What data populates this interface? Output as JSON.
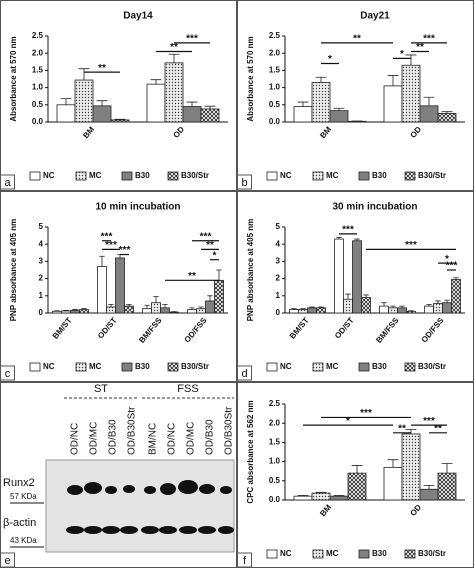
{
  "chart_data": [
    {
      "panel": "a",
      "type": "bar",
      "title": "Day14",
      "ylabel": "Absorbance at 570 nm",
      "categories": [
        "BM",
        "OD"
      ],
      "ylim": [
        0,
        2.5
      ],
      "yticks": [
        {
          "value": 0,
          "label": "0.0"
        },
        {
          "value": 0.5,
          "label": "0.5"
        },
        {
          "value": 1,
          "label": "1.0"
        },
        {
          "value": 1.5,
          "label": "1.5"
        },
        {
          "value": 2,
          "label": "2.0"
        },
        {
          "value": 2.5,
          "label": "2.5"
        }
      ],
      "legend": "bottom",
      "series": [
        {
          "name": "NC",
          "color": "#ffffff",
          "pattern": "solid",
          "values": [
            0.5,
            1.1
          ],
          "errors": [
            0.18,
            0.13
          ]
        },
        {
          "name": "MC",
          "color": "#d8d8d8",
          "pattern": "dots",
          "values": [
            1.22,
            1.72
          ],
          "errors": [
            0.33,
            0.25
          ]
        },
        {
          "name": "B30",
          "color": "#808080",
          "pattern": "solid",
          "values": [
            0.47,
            0.45
          ],
          "errors": [
            0.15,
            0.13
          ]
        },
        {
          "name": "B30/Str",
          "color": "#ffffff",
          "pattern": "cross",
          "values": [
            0.06,
            0.38
          ],
          "errors": [
            0.02,
            0.08
          ]
        }
      ],
      "annotations": [
        {
          "text": "**",
          "y": 1.45,
          "span": [
            [
              0,
              1
            ],
            [
              0,
              3
            ]
          ]
        },
        {
          "text": "**",
          "y": 2.05,
          "span": [
            [
              1,
              0
            ],
            [
              1,
              2
            ]
          ]
        },
        {
          "text": "***",
          "y": 2.3,
          "span": [
            [
              1,
              1
            ],
            [
              1,
              3
            ]
          ]
        }
      ]
    },
    {
      "panel": "b",
      "type": "bar",
      "title": "Day21",
      "ylabel": "Absorbance at 570 nm",
      "categories": [
        "BM",
        "OD"
      ],
      "ylim": [
        0,
        2.5
      ],
      "yticks": [
        {
          "value": 0,
          "label": "0.0"
        },
        {
          "value": 0.5,
          "label": "0.5"
        },
        {
          "value": 1,
          "label": "1.0"
        },
        {
          "value": 1.5,
          "label": "1.5"
        },
        {
          "value": 2,
          "label": "2.0"
        },
        {
          "value": 2.5,
          "label": "2.5"
        }
      ],
      "legend": "bottom",
      "series": [
        {
          "name": "NC",
          "color": "#ffffff",
          "pattern": "solid",
          "values": [
            0.45,
            1.05
          ],
          "errors": [
            0.13,
            0.3
          ]
        },
        {
          "name": "MC",
          "color": "#d8d8d8",
          "pattern": "dots",
          "values": [
            1.15,
            1.65
          ],
          "errors": [
            0.15,
            0.3
          ]
        },
        {
          "name": "B30",
          "color": "#808080",
          "pattern": "solid",
          "values": [
            0.33,
            0.47
          ],
          "errors": [
            0.07,
            0.25
          ]
        },
        {
          "name": "B30/Str",
          "color": "#ffffff",
          "pattern": "cross",
          "values": [
            0.02,
            0.25
          ],
          "errors": [
            0.01,
            0.05
          ]
        }
      ],
      "annotations": [
        {
          "text": "**",
          "y": 2.3,
          "span": [
            [
              0,
              1
            ],
            [
              1,
              0
            ]
          ]
        },
        {
          "text": "*",
          "y": 1.7,
          "span": [
            [
              0,
              1
            ],
            [
              0,
              2
            ]
          ]
        },
        {
          "text": "*",
          "y": 1.85,
          "span": [
            [
              1,
              0
            ],
            [
              1,
              1
            ]
          ]
        },
        {
          "text": "**",
          "y": 2.05,
          "span": [
            [
              1,
              1
            ],
            [
              1,
              2
            ]
          ]
        },
        {
          "text": "***",
          "y": 2.3,
          "span": [
            [
              1,
              1
            ],
            [
              1,
              3
            ]
          ]
        }
      ]
    },
    {
      "panel": "c",
      "type": "bar",
      "title": "10 min incubation",
      "ylabel": "PNP absorbance at 405 nm",
      "categories": [
        "BM/ST",
        "OD/ST",
        "BM/FSS",
        "OD/FSS"
      ],
      "ylim": [
        0,
        5
      ],
      "yticks": [
        0,
        1,
        2,
        3,
        4,
        5
      ],
      "legend": "bottom",
      "series": [
        {
          "name": "NC",
          "color": "#ffffff",
          "pattern": "solid",
          "values": [
            0.1,
            2.7,
            0.25,
            0.2
          ],
          "errors": [
            0.03,
            0.6,
            0.2,
            0.1
          ]
        },
        {
          "name": "MC",
          "color": "#d8d8d8",
          "pattern": "dots",
          "values": [
            0.12,
            0.35,
            0.6,
            0.25
          ],
          "errors": [
            0.03,
            0.15,
            0.35,
            0.1
          ]
        },
        {
          "name": "B30",
          "color": "#808080",
          "pattern": "solid",
          "values": [
            0.15,
            3.2,
            0.3,
            0.7
          ],
          "errors": [
            0.05,
            0.2,
            0.2,
            0.3
          ]
        },
        {
          "name": "B30/Str",
          "color": "#ffffff",
          "pattern": "cross",
          "values": [
            0.2,
            0.4,
            0.05,
            1.9
          ],
          "errors": [
            0.05,
            0.1,
            0.03,
            0.6
          ]
        }
      ],
      "annotations": [
        {
          "text": "***",
          "y": 4.2,
          "span": [
            [
              1,
              0
            ],
            [
              1,
              1
            ]
          ]
        },
        {
          "text": "***",
          "y": 3.7,
          "span": [
            [
              1,
              0
            ],
            [
              1,
              2
            ]
          ]
        },
        {
          "text": "***",
          "y": 3.4,
          "span": [
            [
              1,
              2
            ],
            [
              1,
              3
            ]
          ]
        },
        {
          "text": "**",
          "y": 1.9,
          "span": [
            [
              2,
              2
            ],
            [
              3,
              3
            ]
          ]
        },
        {
          "text": "***",
          "y": 4.2,
          "span": [
            [
              3,
              0
            ],
            [
              3,
              3
            ]
          ]
        },
        {
          "text": "**",
          "y": 3.7,
          "span": [
            [
              3,
              1
            ],
            [
              3,
              3
            ]
          ]
        },
        {
          "text": "*",
          "y": 3.1,
          "span": [
            [
              3,
              2
            ],
            [
              3,
              3
            ]
          ]
        }
      ]
    },
    {
      "panel": "d",
      "type": "bar",
      "title": "30 min incubation",
      "ylabel": "PNP absorbance at 405 nm",
      "categories": [
        "BM/ST",
        "OD/ST",
        "BM/FSS",
        "OD/FSS"
      ],
      "ylim": [
        0,
        5
      ],
      "yticks": [
        0,
        1,
        2,
        3,
        4,
        5
      ],
      "legend": "bottom",
      "series": [
        {
          "name": "NC",
          "color": "#ffffff",
          "pattern": "solid",
          "values": [
            0.2,
            4.3,
            0.4,
            0.4
          ],
          "errors": [
            0.05,
            0.1,
            0.2,
            0.1
          ]
        },
        {
          "name": "MC",
          "color": "#d8d8d8",
          "pattern": "dots",
          "values": [
            0.2,
            0.8,
            0.3,
            0.55
          ],
          "errors": [
            0.05,
            0.3,
            0.1,
            0.15
          ]
        },
        {
          "name": "B30",
          "color": "#808080",
          "pattern": "solid",
          "values": [
            0.3,
            4.2,
            0.3,
            0.6
          ],
          "errors": [
            0.05,
            0.1,
            0.1,
            0.15
          ]
        },
        {
          "name": "B30/Str",
          "color": "#ffffff",
          "pattern": "cross",
          "values": [
            0.3,
            0.9,
            0.1,
            1.95
          ],
          "errors": [
            0.05,
            0.15,
            0.03,
            0.1
          ]
        }
      ],
      "annotations": [
        {
          "text": "***",
          "y": 4.6,
          "span": [
            [
              1,
              0
            ],
            [
              1,
              2
            ]
          ]
        },
        {
          "text": "***",
          "y": 3.7,
          "span": [
            [
              1,
              3
            ],
            [
              3,
              3
            ]
          ]
        },
        {
          "text": "*",
          "y": 2.9,
          "span": [
            [
              3,
              1
            ],
            [
              3,
              3
            ]
          ]
        },
        {
          "text": "***",
          "y": 2.5,
          "span": [
            [
              3,
              2
            ],
            [
              3,
              3
            ]
          ]
        }
      ]
    },
    {
      "panel": "f",
      "type": "bar",
      "ylabel": "CPC absorbance at 562 nm",
      "categories": [
        "BM",
        "OD"
      ],
      "ylim": [
        0,
        2.5
      ],
      "yticks": [
        {
          "value": 0,
          "label": "0.0"
        },
        {
          "value": 0.5,
          "label": "0.5"
        },
        {
          "value": 1,
          "label": "1.0"
        },
        {
          "value": 1.5,
          "label": "1.5"
        },
        {
          "value": 2,
          "label": "2.0"
        },
        {
          "value": 2.5,
          "label": "2.5"
        }
      ],
      "legend": "bottom",
      "series": [
        {
          "name": "NC",
          "color": "#ffffff",
          "pattern": "solid",
          "values": [
            0.1,
            0.85
          ],
          "errors": [
            0.02,
            0.2
          ]
        },
        {
          "name": "MC",
          "color": "#d8d8d8",
          "pattern": "dots",
          "values": [
            0.18,
            1.72
          ],
          "errors": [
            0.02,
            0.12
          ]
        },
        {
          "name": "B30",
          "color": "#808080",
          "pattern": "solid",
          "values": [
            0.1,
            0.28
          ],
          "errors": [
            0.02,
            0.1
          ]
        },
        {
          "name": "B30/Str",
          "color": "#ffffff",
          "pattern": "cross",
          "values": [
            0.7,
            0.7
          ],
          "errors": [
            0.2,
            0.25
          ]
        }
      ],
      "annotations": [
        {
          "text": "***",
          "y": 2.15,
          "span": [
            [
              0,
              1
            ],
            [
              1,
              1
            ]
          ]
        },
        {
          "text": "*",
          "y": 1.95,
          "span": [
            [
              0,
              0
            ],
            [
              1,
              0
            ]
          ]
        },
        {
          "text": "***",
          "y": 1.95,
          "span": [
            [
              1,
              1
            ],
            [
              1,
              3
            ]
          ]
        },
        {
          "text": "**",
          "y": 1.75,
          "span": [
            [
              1,
              0
            ],
            [
              1,
              1
            ]
          ]
        },
        {
          "text": "**",
          "y": 1.75,
          "span": [
            [
              1,
              2
            ],
            [
              1,
              3
            ]
          ]
        }
      ]
    }
  ],
  "blot": {
    "panel": "e",
    "groups": [
      "ST",
      "FSS"
    ],
    "lanes": [
      "OD/NC",
      "OD/MC",
      "OD/B30",
      "OD/B30Str",
      "BM/NC",
      "OD/NC",
      "OD/MC",
      "OD/B30",
      "OD/B30Str"
    ],
    "markers": [
      {
        "protein": "Runx2",
        "size": "57 KDa"
      },
      {
        "protein": "β-actin",
        "size": "43 KDa"
      }
    ]
  }
}
